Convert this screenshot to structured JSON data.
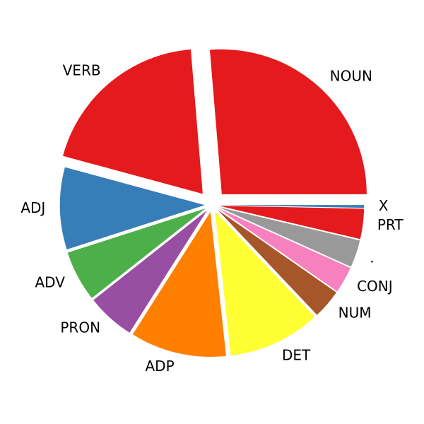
{
  "chart_data": {
    "type": "pie",
    "title": "",
    "slices": [
      {
        "label": "NOUN",
        "value": 25.0,
        "color": "#e41a1c"
      },
      {
        "label": "VERB",
        "value": 18.5,
        "color": "#e41a1c"
      },
      {
        "label": "ADJ",
        "value": 8.7,
        "color": "#377eb8"
      },
      {
        "label": "ADV",
        "value": 5.4,
        "color": "#4daf4a"
      },
      {
        "label": "PRON",
        "value": 5.1,
        "color": "#984ea3"
      },
      {
        "label": "ADP",
        "value": 10.2,
        "color": "#ff7f00"
      },
      {
        "label": "DET",
        "value": 9.8,
        "color": "#ffff33"
      },
      {
        "label": "NUM",
        "value": 3.1,
        "color": "#a65628"
      },
      {
        "label": "CONJ",
        "value": 2.8,
        "color": "#f781bf"
      },
      {
        "label": ".",
        "value": 2.9,
        "color": "#999999"
      },
      {
        "label": "PRT",
        "value": 3.2,
        "color": "#e41a1c"
      },
      {
        "label": "X",
        "value": 0.3,
        "color": "#377eb8"
      }
    ],
    "explode": [
      0.1,
      0.1,
      0.05,
      0.05,
      0.05,
      0.05,
      0.05,
      0.05,
      0.05,
      0.05,
      0.05,
      0.05
    ]
  }
}
